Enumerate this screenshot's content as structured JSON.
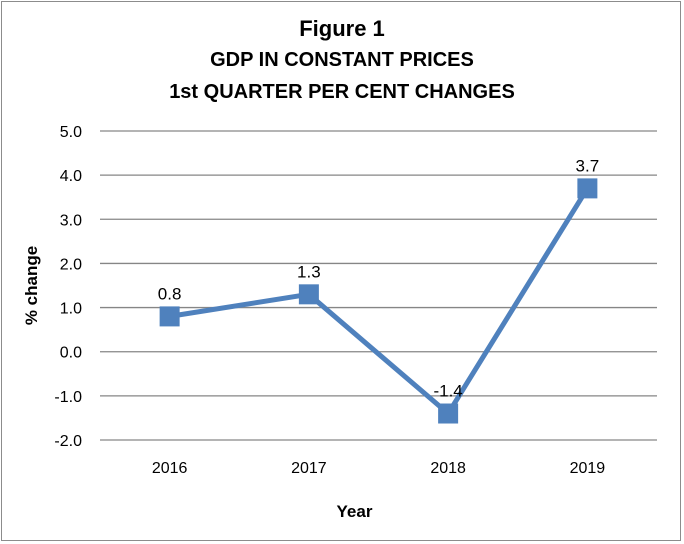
{
  "chart_data": {
    "type": "line",
    "title": "Figure 1",
    "subtitle": [
      "GDP IN CONSTANT PRICES",
      "1st QUARTER PER CENT CHANGES"
    ],
    "xlabel": "Year",
    "ylabel": "% change",
    "categories": [
      "2016",
      "2017",
      "2018",
      "2019"
    ],
    "series": [
      {
        "values": [
          0.8,
          1.3,
          -1.4,
          3.7
        ],
        "labels": [
          "0.8",
          "1.3",
          "-1.4",
          "3.7"
        ],
        "color": "#4f81bd"
      }
    ],
    "ylim": [
      -2.0,
      5.0
    ],
    "yticks": [
      -2.0,
      -1.0,
      0.0,
      1.0,
      2.0,
      3.0,
      4.0,
      5.0
    ],
    "ytick_labels": [
      "-2.0",
      "-1.0",
      "0.0",
      "1.0",
      "2.0",
      "3.0",
      "4.0",
      "5.0"
    ],
    "grid": true,
    "gridline_color": "#868686",
    "legend": "none"
  }
}
